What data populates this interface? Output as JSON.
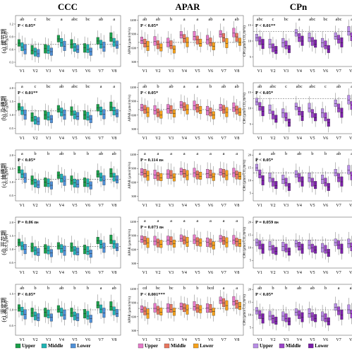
{
  "chart_data": {
    "type": "boxplot-grid",
    "column_titles": [
      "CCC",
      "APAR",
      "CPn"
    ],
    "y_labels": {
      "CCC": "CCC (g/m²)",
      "APAR": "APAR (μmol/m²/s)",
      "CPn": "CPn (μmol CO₂/m²/s)"
    },
    "row_labels": [
      "(a) 拔节期",
      "(b) 孕穗期",
      "(c) 抽穗期",
      "(d) 开花期",
      "(e) 灌浆期"
    ],
    "categories": [
      "V1",
      "V2",
      "V3",
      "V4",
      "V5",
      "V6",
      "V7",
      "V8"
    ],
    "legends": {
      "CCC": [
        {
          "name": "Upper",
          "color": "#1a9e4a"
        },
        {
          "name": "Middle",
          "color": "#1fb3b3"
        },
        {
          "name": "Lower",
          "color": "#4f8fd6"
        }
      ],
      "APAR": [
        {
          "name": "Upper",
          "color": "#e57ac8"
        },
        {
          "name": "Middle",
          "color": "#e8765f"
        },
        {
          "name": "Lower",
          "color": "#f5a11c"
        }
      ],
      "CPn": [
        {
          "name": "Upper",
          "color": "#b98ee6"
        },
        {
          "name": "Middle",
          "color": "#9b45c8"
        },
        {
          "name": "Lower",
          "color": "#7a1fa8"
        }
      ]
    },
    "panels": [
      {
        "row": 0,
        "col": 0,
        "stat": "P < 0.05*",
        "letters": [
          "ab",
          "c",
          "bc",
          "a",
          "abc",
          "bc",
          "ab",
          "a"
        ],
        "ticks": [
          "1.2",
          "0.9",
          "0.6",
          "0.3"
        ],
        "ylim": [
          0.2,
          1.4
        ],
        "ref": 0.72,
        "medians": [
          [
            0.75,
            0.66,
            0.6
          ],
          [
            0.58,
            0.55,
            0.5
          ],
          [
            0.62,
            0.58,
            0.55
          ],
          [
            0.85,
            0.76,
            0.68
          ],
          [
            0.72,
            0.66,
            0.6
          ],
          [
            0.64,
            0.6,
            0.55
          ],
          [
            0.8,
            0.72,
            0.66
          ],
          [
            0.88,
            0.78,
            0.7
          ]
        ]
      },
      {
        "row": 0,
        "col": 1,
        "stat": "P < 0.05*",
        "letters": [
          "ab",
          "ab",
          "b",
          "a",
          "a",
          "ab",
          "a",
          "ab"
        ],
        "ticks": [
          "1200",
          "900",
          "600",
          "300"
        ],
        "ylim": [
          200,
          1300
        ],
        "ref": 720,
        "medians": [
          [
            760,
            700,
            640
          ],
          [
            740,
            680,
            600
          ],
          [
            720,
            650,
            570
          ],
          [
            880,
            800,
            720
          ],
          [
            850,
            780,
            700
          ],
          [
            780,
            710,
            640
          ],
          [
            900,
            820,
            700
          ],
          [
            920,
            840,
            720
          ]
        ]
      },
      {
        "row": 0,
        "col": 2,
        "stat": "P < 0.01**",
        "letters": [
          "abc",
          "c",
          "bc",
          "a",
          "abc",
          "bc",
          "abc",
          "a"
        ],
        "ticks": [
          "15",
          "10",
          "5"
        ],
        "ylim": [
          2,
          18
        ],
        "ref": 13,
        "medians": [
          [
            11,
            10,
            9
          ],
          [
            9,
            8,
            7
          ],
          [
            9.5,
            8.5,
            7.5
          ],
          [
            12.5,
            11,
            10
          ],
          [
            11,
            10,
            9
          ],
          [
            9.5,
            8.5,
            7.5
          ],
          [
            11.5,
            10.5,
            9.5
          ],
          [
            13,
            11.5,
            10
          ]
        ]
      },
      {
        "row": 1,
        "col": 0,
        "stat": "P < 0.01**",
        "letters": [
          "a",
          "c",
          "bc",
          "ab",
          "abc",
          "bc",
          "a",
          "a"
        ],
        "ticks": [
          "2.0",
          "1.5",
          "1.0",
          "0.5"
        ],
        "ylim": [
          0.3,
          2.2
        ],
        "ref": 1.15,
        "medians": [
          [
            1.3,
            1.15,
            1.0
          ],
          [
            0.9,
            0.82,
            0.75
          ],
          [
            1.0,
            0.92,
            0.85
          ],
          [
            1.22,
            1.1,
            1.0
          ],
          [
            1.12,
            1.02,
            0.94
          ],
          [
            1.0,
            0.92,
            0.85
          ],
          [
            1.26,
            1.14,
            1.02
          ],
          [
            1.3,
            1.16,
            1.04
          ]
        ]
      },
      {
        "row": 1,
        "col": 1,
        "stat": "P < 0.05*",
        "letters": [
          "ab",
          "b",
          "ab",
          "a",
          "a",
          "b",
          "ab",
          "ab"
        ],
        "ticks": [
          "1200",
          "900",
          "600",
          "300"
        ],
        "ylim": [
          200,
          1300
        ],
        "ref": 720,
        "medians": [
          [
            760,
            720,
            660
          ],
          [
            700,
            660,
            600
          ],
          [
            740,
            700,
            640
          ],
          [
            820,
            780,
            720
          ],
          [
            800,
            760,
            700
          ],
          [
            700,
            650,
            600
          ],
          [
            760,
            720,
            660
          ],
          [
            760,
            720,
            660
          ]
        ]
      },
      {
        "row": 1,
        "col": 2,
        "stat": "P < 0.05*",
        "letters": [
          "ab",
          "abc",
          "c",
          "abc",
          "abc",
          "c",
          "ab",
          "a"
        ],
        "ticks": [
          "15",
          "10",
          "5"
        ],
        "ylim": [
          2,
          18
        ],
        "ref": 13,
        "medians": [
          [
            12,
            10.5,
            9
          ],
          [
            9.5,
            8,
            6.5
          ],
          [
            8.5,
            7,
            5.5
          ],
          [
            10.5,
            9,
            7.5
          ],
          [
            10,
            8.5,
            7
          ],
          [
            8.5,
            7,
            5.5
          ],
          [
            11.5,
            10,
            8.5
          ],
          [
            12.5,
            11,
            9.5
          ]
        ]
      },
      {
        "row": 2,
        "col": 0,
        "stat": "P < 0.05*",
        "letters": [
          "a",
          "b",
          "b",
          "ab",
          "b",
          "b",
          "ab",
          "ab"
        ],
        "ticks": [
          "2.0",
          "1.5",
          "1.0",
          "0.5"
        ],
        "ylim": [
          0.3,
          2.2
        ],
        "ref": 1.1,
        "medians": [
          [
            1.45,
            1.3,
            1.15
          ],
          [
            1.05,
            0.98,
            0.9
          ],
          [
            1.0,
            0.94,
            0.88
          ],
          [
            1.25,
            1.14,
            1.04
          ],
          [
            1.05,
            0.98,
            0.92
          ],
          [
            1.0,
            0.94,
            0.88
          ],
          [
            1.3,
            1.18,
            1.06
          ],
          [
            1.32,
            1.2,
            1.08
          ]
        ]
      },
      {
        "row": 2,
        "col": 1,
        "stat": "P = 0.114 ns",
        "letters": [
          "a",
          "a",
          "a",
          "a",
          "a",
          "a",
          "a",
          "a"
        ],
        "ticks": [
          "1200",
          "900",
          "600",
          "300"
        ],
        "ylim": [
          200,
          1300
        ],
        "ref": 780,
        "medians": [
          [
            820,
            790,
            740
          ],
          [
            760,
            740,
            700
          ],
          [
            780,
            750,
            710
          ],
          [
            830,
            790,
            750
          ],
          [
            800,
            770,
            730
          ],
          [
            790,
            760,
            720
          ],
          [
            820,
            790,
            750
          ],
          [
            800,
            770,
            730
          ]
        ]
      },
      {
        "row": 2,
        "col": 2,
        "stat": "P < 0.05*",
        "letters": [
          "a",
          "ab",
          "b",
          "ab",
          "b",
          "b",
          "ab",
          "a"
        ],
        "ticks": [
          "20",
          "15",
          "10",
          "5"
        ],
        "ylim": [
          2,
          22
        ],
        "ref": 13,
        "medians": [
          [
            15,
            12.5,
            10
          ],
          [
            11,
            9.5,
            8
          ],
          [
            10.5,
            9,
            7.5
          ],
          [
            12.5,
            11,
            9.5
          ],
          [
            11,
            9.5,
            8
          ],
          [
            10.5,
            9,
            7.5
          ],
          [
            13,
            11,
            9.5
          ],
          [
            14,
            12,
            10
          ]
        ]
      },
      {
        "row": 3,
        "col": 0,
        "stat": "P = 0.06 ns",
        "letters": [
          "",
          "",
          "",
          "",
          "",
          "",
          "",
          ""
        ],
        "ticks": [
          "2.0",
          "1.5",
          "1.0",
          "0.5"
        ],
        "ylim": [
          0.3,
          2.2
        ],
        "ref": 1.1,
        "medians": [
          [
            1.25,
            1.12,
            1.0
          ],
          [
            1.05,
            0.96,
            0.88
          ],
          [
            1.02,
            0.94,
            0.86
          ],
          [
            1.12,
            1.02,
            0.94
          ],
          [
            1.06,
            0.97,
            0.9
          ],
          [
            1.0,
            0.92,
            0.84
          ],
          [
            1.32,
            1.18,
            1.05
          ],
          [
            1.35,
            1.2,
            1.06
          ]
        ]
      },
      {
        "row": 3,
        "col": 1,
        "stat": "P = 0.073 ns",
        "letters": [
          "a",
          "a",
          "a",
          "a",
          "a",
          "a",
          "a",
          "a"
        ],
        "ticks": [
          "1200",
          "900",
          "600",
          "300"
        ],
        "ylim": [
          200,
          1300
        ],
        "ref": 780,
        "medians": [
          [
            820,
            790,
            740
          ],
          [
            780,
            750,
            710
          ],
          [
            800,
            770,
            730
          ],
          [
            840,
            800,
            760
          ],
          [
            810,
            780,
            740
          ],
          [
            760,
            720,
            690
          ],
          [
            830,
            790,
            750
          ],
          [
            800,
            770,
            730
          ]
        ]
      },
      {
        "row": 3,
        "col": 2,
        "stat": "P = 0.059 ns",
        "letters": [
          "",
          "",
          "",
          "",
          "",
          "",
          "",
          ""
        ],
        "ticks": [
          "20",
          "15",
          "10",
          "5"
        ],
        "ylim": [
          2,
          22
        ],
        "ref": 13,
        "medians": [
          [
            12,
            11,
            9.5
          ],
          [
            10.5,
            9.5,
            8.5
          ],
          [
            10.5,
            9.5,
            8.5
          ],
          [
            11.5,
            10.5,
            9.5
          ],
          [
            11,
            10,
            9
          ],
          [
            10,
            9,
            8
          ],
          [
            12,
            11,
            9.5
          ],
          [
            11.5,
            10.5,
            9.5
          ]
        ]
      },
      {
        "row": 4,
        "col": 0,
        "stat": "P < 0.05*",
        "letters": [
          "ab",
          "b",
          "b",
          "ab",
          "b",
          "b",
          "a",
          "ab"
        ],
        "ticks": [
          "1.5",
          "1.0",
          "0.5"
        ],
        "ylim": [
          0.2,
          1.8
        ],
        "ref": 1.0,
        "medians": [
          [
            1.05,
            0.95,
            0.85
          ],
          [
            0.9,
            0.82,
            0.75
          ],
          [
            0.92,
            0.84,
            0.76
          ],
          [
            1.02,
            0.92,
            0.84
          ],
          [
            0.9,
            0.82,
            0.75
          ],
          [
            0.88,
            0.8,
            0.72
          ],
          [
            1.15,
            1.02,
            0.9
          ],
          [
            1.1,
            0.98,
            0.88
          ]
        ]
      },
      {
        "row": 4,
        "col": 1,
        "stat": "P < 0.001***",
        "letters": [
          "cd",
          "bc",
          "bc",
          "b",
          "b",
          "bcd",
          "a",
          "a"
        ],
        "ticks": [
          "1200",
          "900",
          "600",
          "300"
        ],
        "ylim": [
          200,
          1300
        ],
        "ref": 780,
        "medians": [
          [
            760,
            720,
            660
          ],
          [
            780,
            750,
            700
          ],
          [
            790,
            760,
            710
          ],
          [
            820,
            790,
            750
          ],
          [
            820,
            790,
            750
          ],
          [
            790,
            760,
            710
          ],
          [
            950,
            900,
            840
          ],
          [
            930,
            880,
            820
          ]
        ]
      },
      {
        "row": 4,
        "col": 2,
        "stat": "P < 0.05*",
        "letters": [
          "ab",
          "b",
          "b",
          "ab",
          "ab",
          "b",
          "a",
          "ab"
        ],
        "ticks": [
          "20",
          "15",
          "10",
          "5"
        ],
        "ylim": [
          2,
          22
        ],
        "ref": 12,
        "medians": [
          [
            11.5,
            10,
            8.5
          ],
          [
            9.5,
            8.5,
            7.5
          ],
          [
            9.5,
            8.5,
            7.5
          ],
          [
            11,
            10,
            9
          ],
          [
            10.5,
            9.5,
            8.5
          ],
          [
            9.5,
            8.5,
            7.5
          ],
          [
            13,
            11.5,
            10
          ],
          [
            12,
            10.5,
            9
          ]
        ]
      }
    ]
  }
}
